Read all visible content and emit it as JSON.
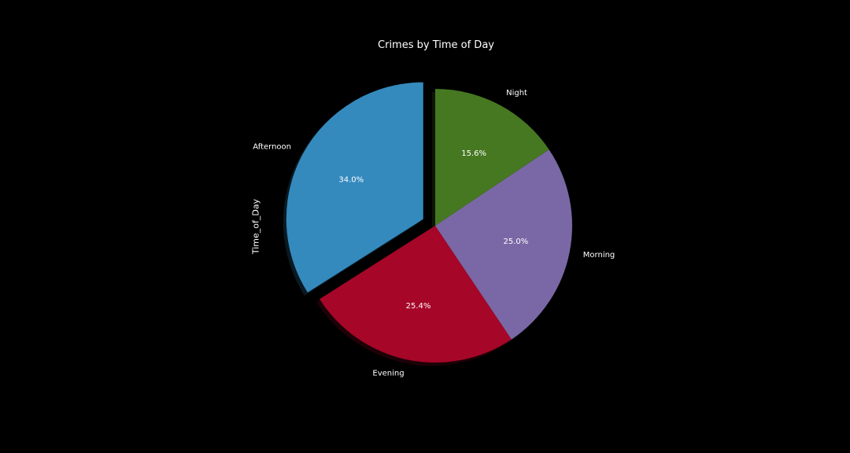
{
  "chart_data": {
    "type": "pie",
    "title": "Crimes by Time of Day",
    "ylabel": "Time_of_Day",
    "slices": [
      {
        "label": "Afternoon",
        "value": 34.0,
        "pct_label": "34.0%",
        "color": "#348ABD",
        "explode": 0.1
      },
      {
        "label": "Evening",
        "value": 25.4,
        "pct_label": "25.4%",
        "color": "#A60628",
        "explode": 0
      },
      {
        "label": "Morning",
        "value": 25.0,
        "pct_label": "25.0%",
        "color": "#7A68A6",
        "explode": 0
      },
      {
        "label": "Night",
        "value": 15.6,
        "pct_label": "15.6%",
        "color": "#467821",
        "explode": 0
      }
    ],
    "start_angle_deg": 90,
    "counterclockwise": true,
    "shadow": true,
    "background": "#000000",
    "text_color": "#ffffff"
  }
}
